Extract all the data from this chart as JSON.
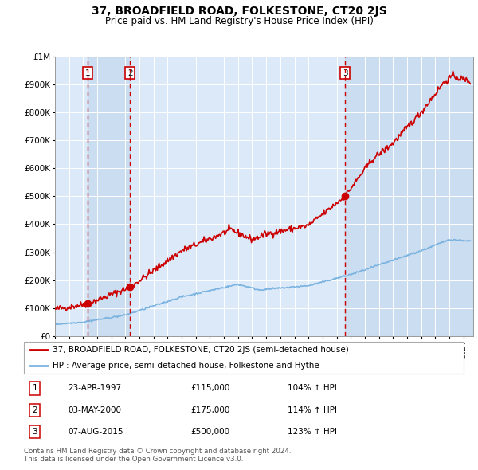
{
  "title": "37, BROADFIELD ROAD, FOLKESTONE, CT20 2JS",
  "subtitle": "Price paid vs. HM Land Registry's House Price Index (HPI)",
  "legend_label_red": "37, BROADFIELD ROAD, FOLKESTONE, CT20 2JS (semi-detached house)",
  "legend_label_blue": "HPI: Average price, semi-detached house, Folkestone and Hythe",
  "footer1": "Contains HM Land Registry data © Crown copyright and database right 2024.",
  "footer2": "This data is licensed under the Open Government Licence v3.0.",
  "sales": [
    {
      "num": 1,
      "date": "23-APR-1997",
      "price": "£115,000",
      "hpi": "104% ↑ HPI",
      "year": 1997.31
    },
    {
      "num": 2,
      "date": "03-MAY-2000",
      "price": "£175,000",
      "hpi": "114% ↑ HPI",
      "year": 2000.34
    },
    {
      "num": 3,
      "date": "07-AUG-2015",
      "price": "£500,000",
      "hpi": "123% ↑ HPI",
      "year": 2015.6
    }
  ],
  "sale_prices": [
    115000,
    175000,
    500000
  ],
  "sale_years": [
    1997.31,
    2000.34,
    2015.6
  ],
  "ylim": [
    0,
    1000000
  ],
  "xlim": [
    1995.0,
    2024.7
  ],
  "red_color": "#cc0000",
  "blue_color": "#7ab3e0",
  "plot_bg": "#dce9f8",
  "shade_color": "#b8cfe8"
}
